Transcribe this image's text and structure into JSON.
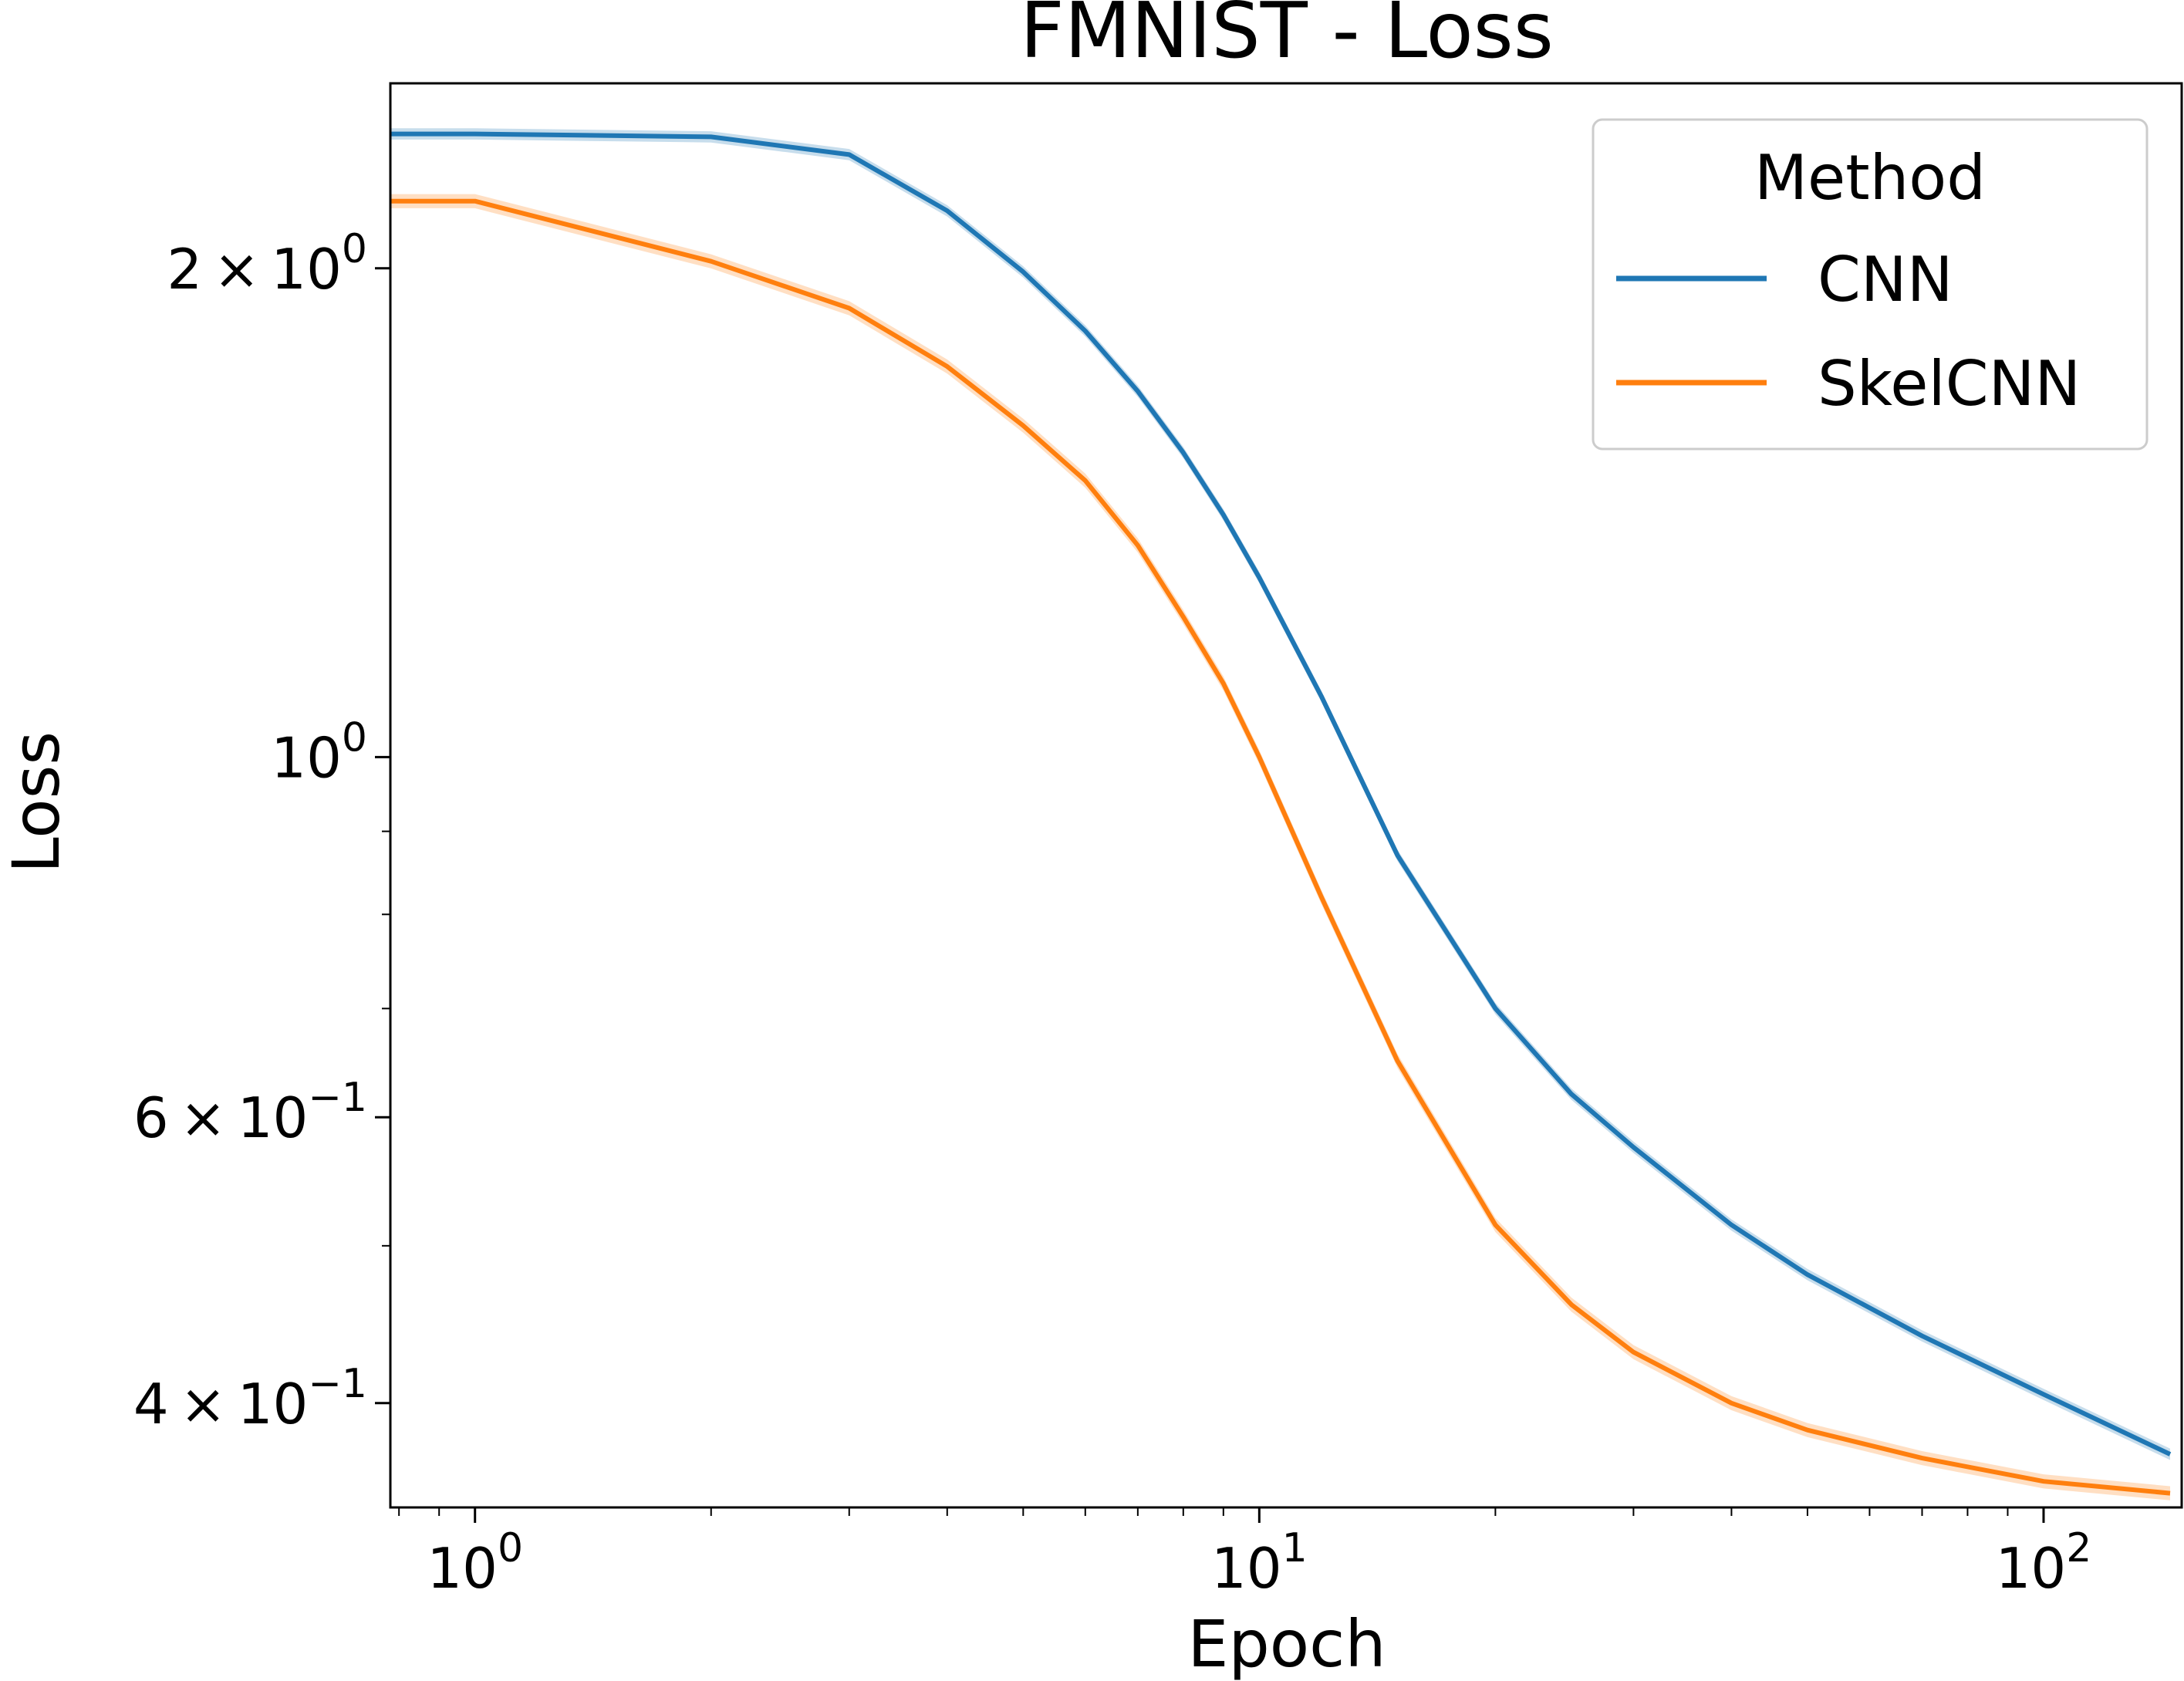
{
  "chart_data": {
    "type": "line",
    "title": "FMNIST - Loss",
    "xlabel": "Epoch",
    "ylabel": "Loss",
    "xscale": "log",
    "yscale": "log",
    "xlim": [
      0.78,
      150
    ],
    "ylim": [
      0.345,
      2.6
    ],
    "grid": false,
    "x_ticks": [
      {
        "value": 1,
        "base": "10",
        "exp": "0"
      },
      {
        "value": 10,
        "base": "10",
        "exp": "1"
      },
      {
        "value": 100,
        "base": "10",
        "exp": "2"
      }
    ],
    "y_ticks": [
      {
        "value": 2.0,
        "mant": "2",
        "base": "10",
        "exp": "0"
      },
      {
        "value": 1.0,
        "mant": "",
        "base": "10",
        "exp": "0"
      },
      {
        "value": 0.6,
        "mant": "6",
        "base": "10",
        "exp": "−1"
      },
      {
        "value": 0.4,
        "mant": "4",
        "base": "10",
        "exp": "−1"
      }
    ],
    "legend": {
      "title": "Method",
      "position": "upper right"
    },
    "series": [
      {
        "name": "CNN",
        "color": "#1f77b4",
        "band": 0.008,
        "x": [
          0.78,
          1,
          2,
          3,
          4,
          5,
          6,
          7,
          8,
          9,
          10,
          12,
          15,
          20,
          25,
          30,
          40,
          50,
          70,
          100,
          145
        ],
        "y": [
          2.42,
          2.42,
          2.41,
          2.35,
          2.17,
          1.99,
          1.83,
          1.68,
          1.54,
          1.41,
          1.29,
          1.09,
          0.87,
          0.7,
          0.62,
          0.575,
          0.515,
          0.48,
          0.44,
          0.405,
          0.372
        ]
      },
      {
        "name": "SkelCNN",
        "color": "#ff7f0e",
        "band": 0.01,
        "x": [
          0.78,
          1,
          2,
          3,
          4,
          5,
          6,
          7,
          8,
          9,
          10,
          12,
          15,
          20,
          25,
          30,
          40,
          50,
          70,
          100,
          145
        ],
        "y": [
          2.2,
          2.2,
          2.02,
          1.89,
          1.74,
          1.6,
          1.48,
          1.35,
          1.22,
          1.11,
          1.0,
          0.82,
          0.65,
          0.515,
          0.46,
          0.43,
          0.4,
          0.385,
          0.37,
          0.358,
          0.352
        ]
      }
    ]
  }
}
